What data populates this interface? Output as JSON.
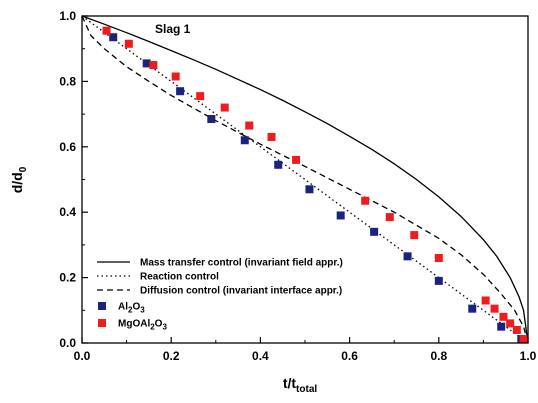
{
  "chart_data": {
    "type": "scatter",
    "xlabel": {
      "main": "t/t",
      "sub": "total"
    },
    "ylabel": {
      "main": "d/d",
      "sub": "0"
    },
    "xlim": [
      0.0,
      1.0
    ],
    "ylim": [
      0.0,
      1.0
    ],
    "x_ticks": [
      "0.0",
      "0.2",
      "0.4",
      "0.6",
      "0.8",
      "1.0"
    ],
    "y_ticks": [
      "0.0",
      "0.2",
      "0.4",
      "0.6",
      "0.8",
      "1.0"
    ],
    "annotation": "Slag 1",
    "grid": false,
    "legend_position": "bottom-left",
    "lines": [
      {
        "name": "Mass transfer control (invariant field appr.)",
        "style": "solid",
        "color": "#000000",
        "x": [
          0.0,
          0.05,
          0.1,
          0.15,
          0.2,
          0.25,
          0.3,
          0.35,
          0.4,
          0.45,
          0.5,
          0.55,
          0.6,
          0.65,
          0.7,
          0.75,
          0.8,
          0.85,
          0.9,
          0.93,
          0.96,
          0.98,
          0.99,
          1.0
        ],
        "y": [
          1.0,
          0.975,
          0.949,
          0.922,
          0.894,
          0.866,
          0.837,
          0.806,
          0.775,
          0.742,
          0.707,
          0.671,
          0.632,
          0.592,
          0.548,
          0.5,
          0.447,
          0.387,
          0.316,
          0.265,
          0.2,
          0.141,
          0.1,
          0.0
        ]
      },
      {
        "name": "Reaction control",
        "style": "dotted",
        "color": "#000000",
        "x": [
          0.0,
          1.0
        ],
        "y": [
          1.0,
          0.0
        ]
      },
      {
        "name": "Diffusion control (invariant interface appr.)",
        "style": "dashed",
        "color": "#000000",
        "x": [
          0.0,
          0.02,
          0.05,
          0.1,
          0.15,
          0.2,
          0.3,
          0.4,
          0.5,
          0.6,
          0.7,
          0.8,
          0.85,
          0.9,
          0.94,
          0.97,
          0.99,
          1.0
        ],
        "y": [
          1.0,
          0.94,
          0.9,
          0.845,
          0.8,
          0.757,
          0.68,
          0.608,
          0.54,
          0.47,
          0.4,
          0.32,
          0.27,
          0.21,
          0.15,
          0.1,
          0.05,
          0.0
        ]
      }
    ],
    "series": [
      {
        "name": "Al2O3",
        "name_parts": [
          "Al",
          "2",
          "O",
          "3"
        ],
        "marker": "square",
        "color": "#1a237e",
        "x": [
          0.07,
          0.145,
          0.22,
          0.29,
          0.365,
          0.44,
          0.51,
          0.58,
          0.655,
          0.73,
          0.8,
          0.875,
          0.94,
          0.985
        ],
        "y": [
          0.935,
          0.855,
          0.77,
          0.685,
          0.62,
          0.545,
          0.47,
          0.39,
          0.34,
          0.265,
          0.19,
          0.105,
          0.05,
          0.012
        ]
      },
      {
        "name": "MgOAl2O3",
        "name_parts": [
          "MgOAl",
          "2",
          "O",
          "3"
        ],
        "marker": "square",
        "color": "#ee1c1c",
        "x": [
          0.055,
          0.105,
          0.16,
          0.21,
          0.265,
          0.32,
          0.375,
          0.425,
          0.48,
          0.635,
          0.69,
          0.745,
          0.8,
          0.905,
          0.925,
          0.945,
          0.96,
          0.975,
          0.99
        ],
        "y": [
          0.955,
          0.915,
          0.85,
          0.815,
          0.755,
          0.72,
          0.665,
          0.63,
          0.56,
          0.435,
          0.385,
          0.33,
          0.26,
          0.13,
          0.105,
          0.08,
          0.06,
          0.04,
          0.012
        ]
      }
    ]
  }
}
